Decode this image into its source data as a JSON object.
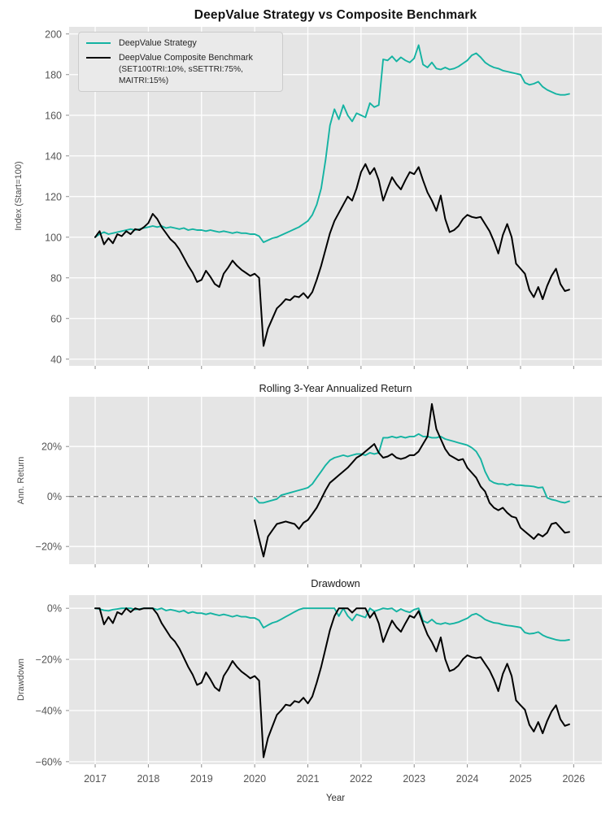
{
  "figure": {
    "title": "DeepValue Strategy vs Composite Benchmark",
    "xlabel": "Year"
  },
  "colors": {
    "strategy": "#14b3a2",
    "benchmark": "#000000",
    "plot_bg": "#e5e5e5",
    "grid": "#ffffff",
    "tick_text": "#555555",
    "zero_dash": "#7a7a7a"
  },
  "legend": {
    "items": [
      {
        "label": "DeepValue Strategy",
        "color": "#14b3a2"
      },
      {
        "label": "DeepValue Composite Benchmark",
        "sublabel": "(SET100TRI:10%, sSETTRI:75%, MAITRI:15%)",
        "color": "#000000"
      }
    ]
  },
  "chart_data": [
    {
      "type": "line",
      "title": "DeepValue Strategy vs Composite Benchmark",
      "ylabel": "Index (Start=100)",
      "xlim": [
        2016.51,
        2026.53
      ],
      "xticks": [
        2017,
        2018,
        2019,
        2020,
        2021,
        2022,
        2023,
        2024,
        2025,
        2026
      ],
      "ylim": [
        36.7,
        203.5
      ],
      "ytick_values": [
        200,
        180,
        160,
        140,
        120,
        100,
        80,
        60,
        40
      ],
      "ytick_labels": [
        "200",
        "180",
        "160",
        "140",
        "120",
        "100",
        "80",
        "60",
        "40"
      ],
      "zero_dashed": false,
      "show_xlabels": false,
      "legend_position": "upper-left",
      "series": [
        {
          "name": "DeepValue Strategy",
          "color": "#14b3a2",
          "x_start": 2017.0,
          "x_step": 0.0833333,
          "values": [
            100,
            101.5,
            102.5,
            101.5,
            102,
            102.5,
            103,
            103.5,
            104,
            103.5,
            104,
            104.5,
            105,
            105.5,
            105,
            105.5,
            104.5,
            105,
            104.5,
            104,
            104.5,
            103.5,
            104,
            103.5,
            103.5,
            103,
            103.5,
            103,
            102.5,
            103,
            102.5,
            102,
            102.5,
            102,
            102,
            101.5,
            101.5,
            100.5,
            97.5,
            98.5,
            99.5,
            100,
            101,
            102,
            103,
            104,
            105,
            106.5,
            108,
            111,
            116,
            124,
            138,
            155,
            163,
            158,
            165,
            160,
            157,
            161,
            160,
            159,
            166,
            164,
            165,
            187.5,
            187,
            189,
            186.5,
            188.5,
            187,
            186,
            188,
            194.5,
            185,
            183.5,
            186,
            183,
            182.5,
            183.5,
            182.5,
            183,
            184,
            185.5,
            187,
            189.5,
            190.5,
            188.5,
            186,
            184.5,
            183.5,
            183,
            182,
            181.5,
            181,
            180.5,
            180,
            176,
            175,
            175.5,
            176.5,
            174,
            172.5,
            171.5,
            170.5,
            170,
            170,
            170.5
          ]
        },
        {
          "name": "DeepValue Composite Benchmark (SET100TRI:10%, sSETTRI:75%, MAITRI:15%)",
          "color": "#000000",
          "x_start": 2017.0,
          "x_step": 0.0833333,
          "values": [
            100,
            103,
            96.5,
            99.5,
            97,
            101.5,
            100.5,
            103,
            101.5,
            104,
            103.5,
            105,
            107,
            111.5,
            109,
            105,
            102,
            99,
            97,
            94,
            90,
            86,
            82.5,
            78,
            79,
            83.5,
            80.5,
            77,
            75.5,
            82,
            85,
            88.5,
            86,
            84,
            82.5,
            81,
            82,
            80,
            46.5,
            55,
            60,
            65,
            67,
            69.5,
            69,
            71,
            70.5,
            72.5,
            70,
            73,
            79,
            86,
            94,
            102,
            108,
            112,
            116,
            120,
            118,
            124,
            132,
            136,
            131,
            134,
            128,
            118,
            124,
            129.5,
            126,
            123.5,
            128,
            132,
            131,
            134.5,
            128,
            122,
            118,
            113,
            120.5,
            109,
            102.5,
            103.5,
            105.5,
            109,
            111,
            110,
            109.5,
            110,
            106.5,
            103,
            98,
            92,
            101,
            106.5,
            100,
            87,
            84.5,
            82,
            74,
            70.5,
            75.5,
            69.5,
            76,
            81,
            84.5,
            77,
            73.5,
            74.2
          ]
        }
      ]
    },
    {
      "type": "line",
      "title": "Rolling 3-Year Annualized Return",
      "ylabel": "Ann. Return",
      "xlim": [
        2016.51,
        2026.53
      ],
      "xticks": [
        2017,
        2018,
        2019,
        2020,
        2021,
        2022,
        2023,
        2024,
        2025,
        2026
      ],
      "ylim": [
        -27.1,
        39.9
      ],
      "ytick_values": [
        20,
        0,
        -20
      ],
      "ytick_labels": [
        "20%",
        "0%",
        "−20%"
      ],
      "zero_dashed": true,
      "show_xlabels": false,
      "series": [
        {
          "name": "DeepValue Strategy",
          "color": "#14b3a2",
          "x_start": 2020.0,
          "x_step": 0.0833333,
          "values": [
            -0.5,
            -2.5,
            -2.5,
            -2,
            -1.5,
            -1,
            0.5,
            1,
            1.5,
            2,
            2.5,
            3,
            3.5,
            5,
            7.5,
            10,
            12.5,
            14.5,
            15.5,
            16,
            16.5,
            16,
            16.5,
            17,
            17,
            16.5,
            17.5,
            17,
            17.5,
            23.5,
            23.5,
            24,
            23.5,
            24,
            23.5,
            24,
            24,
            25,
            24,
            24,
            23.5,
            23.5,
            24,
            23,
            22.5,
            22,
            21.5,
            21,
            20.5,
            19.5,
            18,
            15,
            10,
            6.5,
            5.5,
            5,
            5,
            4.5,
            5,
            4.5,
            4.5,
            4.3,
            4.2,
            4,
            3.5,
            3.7,
            -0.5,
            -1.2,
            -1.6,
            -2.2,
            -2.5,
            -1.9
          ]
        },
        {
          "name": "DeepValue Composite Benchmark",
          "color": "#000000",
          "x_start": 2020.0,
          "x_step": 0.0833333,
          "values": [
            -9.5,
            -17,
            -24,
            -16,
            -13.5,
            -11,
            -10.5,
            -10,
            -10.5,
            -11,
            -13,
            -10.5,
            -9.4,
            -7,
            -4.5,
            -1,
            2.5,
            5.5,
            7,
            8.5,
            10,
            11.5,
            13.5,
            15.5,
            16.5,
            18,
            19.5,
            21,
            17.5,
            15.5,
            16,
            17,
            15.5,
            15,
            15.5,
            16.5,
            16.5,
            18,
            21,
            24,
            37,
            27,
            23,
            19,
            16.5,
            15.5,
            14.5,
            15,
            11.5,
            9.5,
            7.5,
            4,
            2,
            -2.5,
            -4.5,
            -5.5,
            -4.5,
            -6.5,
            -8,
            -8.5,
            -12.5,
            -14,
            -15.5,
            -17,
            -15,
            -16,
            -14.5,
            -11,
            -10.5,
            -12.5,
            -14.5,
            -14.2
          ]
        }
      ]
    },
    {
      "type": "line",
      "title": "Drawdown",
      "ylabel": "Drawdown",
      "xlim": [
        2016.51,
        2026.53
      ],
      "xticks": [
        2017,
        2018,
        2019,
        2020,
        2021,
        2022,
        2023,
        2024,
        2025,
        2026
      ],
      "xtick_labels": [
        "2017",
        "2018",
        "2019",
        "2020",
        "2021",
        "2022",
        "2023",
        "2024",
        "2025",
        "2026"
      ],
      "ylim": [
        -61.0,
        5.15
      ],
      "ytick_values": [
        0,
        -20,
        -40,
        -60
      ],
      "ytick_labels": [
        "0%",
        "−20%",
        "−40%",
        "−60%"
      ],
      "zero_dashed": false,
      "show_xlabels": true,
      "series": [
        {
          "name": "DeepValue Strategy",
          "color": "#14b3a2",
          "x_start": 2017.0,
          "x_step": 0.0833333,
          "values": [
            0,
            -0.3,
            -0.8,
            -1,
            -0.5,
            -0.3,
            0,
            0,
            0,
            -0.5,
            -0.3,
            0,
            0,
            0,
            -0.5,
            0,
            -0.9,
            -0.5,
            -0.9,
            -1.4,
            -0.9,
            -1.9,
            -1.4,
            -1.9,
            -1.9,
            -2.4,
            -1.9,
            -2.4,
            -2.8,
            -2.4,
            -2.8,
            -3.3,
            -2.8,
            -3.3,
            -3.3,
            -3.8,
            -3.8,
            -4.7,
            -7.6,
            -6.6,
            -5.7,
            -5.2,
            -4.3,
            -3.3,
            -2.4,
            -1.4,
            -0.5,
            0,
            0,
            0,
            0,
            0,
            0,
            0,
            0,
            -3.1,
            0,
            -3,
            -4.8,
            -2.4,
            -3,
            -3.6,
            0,
            -1.2,
            -0.6,
            0,
            -0.3,
            0,
            -1.3,
            -0.3,
            -1.1,
            -1.6,
            -0.5,
            0,
            -4.9,
            -5.7,
            -4.4,
            -5.9,
            -6.2,
            -5.7,
            -6.2,
            -5.9,
            -5.4,
            -4.6,
            -3.9,
            -2.6,
            -2.1,
            -3.1,
            -4.4,
            -5.1,
            -5.7,
            -5.9,
            -6.4,
            -6.7,
            -6.9,
            -7.2,
            -7.5,
            -9.5,
            -10,
            -9.8,
            -9.3,
            -10.5,
            -11.3,
            -11.8,
            -12.3,
            -12.6,
            -12.6,
            -12.3
          ]
        },
        {
          "name": "DeepValue Composite Benchmark",
          "color": "#000000",
          "x_start": 2017.0,
          "x_step": 0.0833333,
          "values": [
            0,
            0,
            -6.3,
            -3.4,
            -5.8,
            -1.5,
            -2.4,
            0,
            -1.5,
            0,
            -0.5,
            0,
            0,
            0,
            -2.2,
            -5.8,
            -8.5,
            -11.2,
            -13,
            -15.7,
            -19.3,
            -22.9,
            -26,
            -30,
            -29.1,
            -25.1,
            -27.8,
            -30.9,
            -32.3,
            -26.5,
            -23.8,
            -20.6,
            -22.9,
            -24.7,
            -26,
            -27.4,
            -26.5,
            -28.3,
            -58.3,
            -50.7,
            -46.2,
            -41.7,
            -39.9,
            -37.7,
            -38.1,
            -36.3,
            -36.8,
            -35,
            -37.2,
            -34.5,
            -29.1,
            -22.9,
            -15.7,
            -8.5,
            -3.1,
            0,
            0,
            0,
            -1.7,
            0,
            0,
            0,
            -3.7,
            -1.5,
            -5.9,
            -13.2,
            -8.8,
            -4.8,
            -7.4,
            -9.2,
            -5.9,
            -2.9,
            -3.7,
            -1.1,
            -5.9,
            -10.3,
            -13.2,
            -16.9,
            -11.4,
            -19.9,
            -24.6,
            -23.9,
            -22.4,
            -19.9,
            -18.4,
            -19.1,
            -19.5,
            -19.1,
            -21.7,
            -24.3,
            -27.9,
            -32.4,
            -25.7,
            -21.7,
            -26.5,
            -36,
            -37.9,
            -39.7,
            -45.6,
            -48.2,
            -44.5,
            -48.9,
            -44.1,
            -40.4,
            -37.9,
            -43.4,
            -46,
            -45.4
          ]
        }
      ]
    }
  ]
}
